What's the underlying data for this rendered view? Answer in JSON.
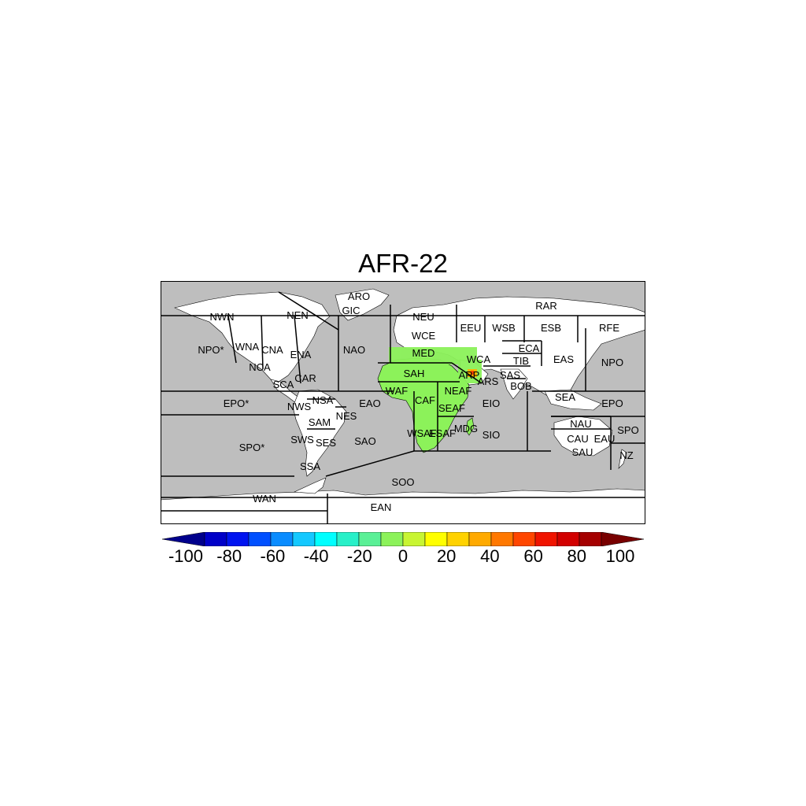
{
  "title": "AFR-22",
  "colors": {
    "ocean": "#bebebe",
    "land": "#ffffff",
    "border": "#000000",
    "domain_fill": "#8cf25a",
    "hotspot": "#ffb400"
  },
  "map": {
    "lon_range": [
      -180,
      180
    ],
    "lat_range": [
      -90,
      90
    ]
  },
  "regions": [
    {
      "code": "RAR",
      "lon": 0
    },
    {
      "code": "ARO"
    },
    {
      "code": "GIC"
    },
    {
      "code": "NWN"
    },
    {
      "code": "NEN"
    },
    {
      "code": "NEU"
    },
    {
      "code": "WCE"
    },
    {
      "code": "EEU"
    },
    {
      "code": "WSB"
    },
    {
      "code": "ESB"
    },
    {
      "code": "RFE"
    },
    {
      "code": "NPO*"
    },
    {
      "code": "WNA"
    },
    {
      "code": "CNA"
    },
    {
      "code": "ENA"
    },
    {
      "code": "NAO"
    },
    {
      "code": "MED"
    },
    {
      "code": "ECA"
    },
    {
      "code": "WCA"
    },
    {
      "code": "TIB"
    },
    {
      "code": "EAS"
    },
    {
      "code": "NPO"
    },
    {
      "code": "NCA"
    },
    {
      "code": "CAR"
    },
    {
      "code": "SCA"
    },
    {
      "code": "SAH"
    },
    {
      "code": "ARP"
    },
    {
      "code": "SAS"
    },
    {
      "code": "ARS"
    },
    {
      "code": "BOB"
    },
    {
      "code": "WAF"
    },
    {
      "code": "NEAF"
    },
    {
      "code": "EPO*"
    },
    {
      "code": "NWS"
    },
    {
      "code": "NSA"
    },
    {
      "code": "EAO"
    },
    {
      "code": "CAF"
    },
    {
      "code": "SEAF"
    },
    {
      "code": "EIO"
    },
    {
      "code": "SEA"
    },
    {
      "code": "EPO"
    },
    {
      "code": "NES"
    },
    {
      "code": "SAM"
    },
    {
      "code": "NAU"
    },
    {
      "code": "SPO"
    },
    {
      "code": "WSAF"
    },
    {
      "code": "ESAF"
    },
    {
      "code": "MDG"
    },
    {
      "code": "SIO"
    },
    {
      "code": "CAU"
    },
    {
      "code": "EAU"
    },
    {
      "code": "SWS"
    },
    {
      "code": "SES"
    },
    {
      "code": "SAO"
    },
    {
      "code": "SPO*"
    },
    {
      "code": "SAU"
    },
    {
      "code": "NZ"
    },
    {
      "code": "SSA"
    },
    {
      "code": "SOO"
    },
    {
      "code": "WAN"
    },
    {
      "code": "EAN"
    }
  ],
  "colorbar": {
    "ticks": [
      "-100",
      "-80",
      "-60",
      "-40",
      "-20",
      "0",
      "20",
      "40",
      "60",
      "80",
      "100"
    ],
    "colors": [
      "#00008c",
      "#0000c8",
      "#0014f0",
      "#0050ff",
      "#0a8cff",
      "#14c8ff",
      "#00ffff",
      "#28f0c8",
      "#5af096",
      "#8cf25a",
      "#c8f532",
      "#ffff00",
      "#ffd200",
      "#ffaa00",
      "#ff7800",
      "#ff4600",
      "#f01400",
      "#d20000",
      "#a50000",
      "#780000"
    ]
  }
}
